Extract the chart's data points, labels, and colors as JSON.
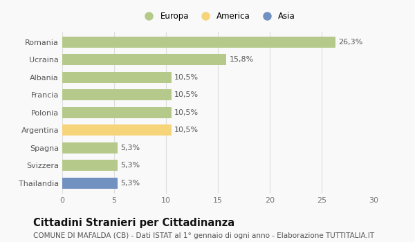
{
  "categories": [
    "Romania",
    "Ucraina",
    "Albania",
    "Francia",
    "Polonia",
    "Argentina",
    "Spagna",
    "Svizzera",
    "Thailandia"
  ],
  "values": [
    26.3,
    15.8,
    10.5,
    10.5,
    10.5,
    10.5,
    5.3,
    5.3,
    5.3
  ],
  "labels": [
    "26,3%",
    "15,8%",
    "10,5%",
    "10,5%",
    "10,5%",
    "10,5%",
    "5,3%",
    "5,3%",
    "5,3%"
  ],
  "colors": [
    "#b5c98a",
    "#b5c98a",
    "#b5c98a",
    "#b5c98a",
    "#b5c98a",
    "#f5d47a",
    "#b5c98a",
    "#b5c98a",
    "#7191c0"
  ],
  "legend": [
    {
      "label": "Europa",
      "color": "#b5c98a"
    },
    {
      "label": "America",
      "color": "#f5d47a"
    },
    {
      "label": "Asia",
      "color": "#7191c0"
    }
  ],
  "xlim": [
    0,
    30
  ],
  "xticks": [
    0,
    5,
    10,
    15,
    20,
    25,
    30
  ],
  "title": "Cittadini Stranieri per Cittadinanza",
  "subtitle": "COMUNE DI MAFALDA (CB) - Dati ISTAT al 1° gennaio di ogni anno - Elaborazione TUTTITALIA.IT",
  "bg_color": "#f9f9f9",
  "grid_color": "#dddddd",
  "label_fontsize": 8.0,
  "tick_fontsize": 8.0,
  "title_fontsize": 10.5,
  "subtitle_fontsize": 7.5
}
